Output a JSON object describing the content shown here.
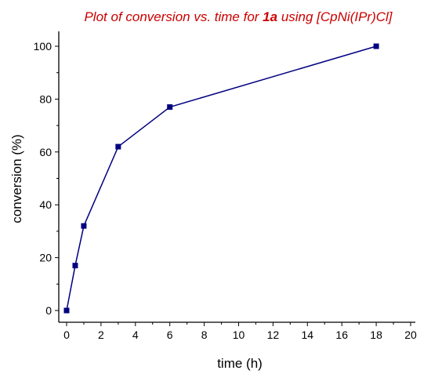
{
  "chart_data": {
    "type": "line",
    "title": {
      "prefix": "Plot of conversion vs. time for ",
      "compound": "1a",
      "suffix": " using [CpNi(IPr)Cl]",
      "color": "#cc0000"
    },
    "xlabel": "time (h)",
    "ylabel": "conversion (%)",
    "xlim": [
      0,
      20
    ],
    "ylim": [
      0,
      100
    ],
    "xticks": [
      0,
      2,
      4,
      6,
      8,
      10,
      12,
      14,
      16,
      18,
      20
    ],
    "yticks": [
      0,
      20,
      40,
      60,
      80,
      100
    ],
    "grid": false,
    "legend": "none",
    "series": [
      {
        "color": "#000080",
        "marker": "square",
        "x": [
          0,
          0.5,
          1,
          3,
          6,
          18
        ],
        "y": [
          0,
          17,
          32,
          62,
          77,
          100
        ]
      }
    ]
  }
}
